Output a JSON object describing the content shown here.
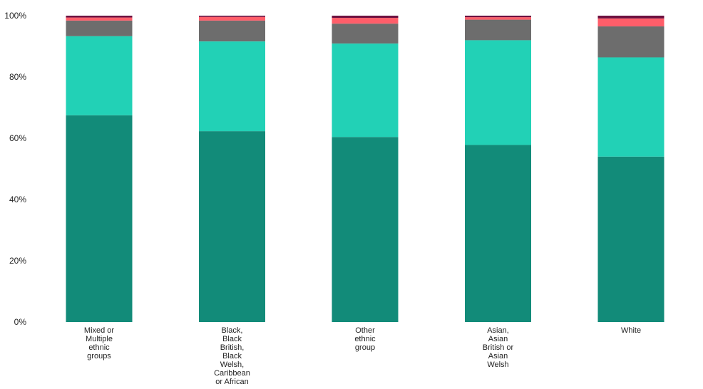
{
  "chart_data": {
    "type": "bar",
    "stacked": true,
    "categories": [
      [
        "Mixed or",
        "Multiple",
        "ethnic",
        "groups"
      ],
      [
        "Black,",
        "Black",
        "British,",
        "Black",
        "Welsh,",
        "Caribbean",
        "or African"
      ],
      [
        "Other",
        "ethnic",
        "group"
      ],
      [
        "Asian,",
        "Asian",
        "British or",
        "Asian",
        "Welsh"
      ],
      [
        "White"
      ]
    ],
    "series": [
      {
        "color": "#128b79",
        "values": [
          67.5,
          62.3,
          60.4,
          57.8,
          54.0
        ]
      },
      {
        "color": "#22d1b6",
        "values": [
          25.8,
          29.3,
          30.5,
          34.2,
          32.4
        ]
      },
      {
        "color": "#6d6d6d",
        "values": [
          5.1,
          6.8,
          6.5,
          6.7,
          10.1
        ]
      },
      {
        "color": "#ff5e6a",
        "values": [
          1.0,
          1.2,
          1.9,
          0.8,
          2.6
        ]
      },
      {
        "color": "#6d1140",
        "values": [
          0.6,
          0.4,
          0.7,
          0.5,
          0.9
        ]
      }
    ],
    "yticks": [
      "0%",
      "20%",
      "40%",
      "60%",
      "80%",
      "100%"
    ],
    "ylim": [
      0,
      100
    ],
    "grid": false,
    "xlabel": "",
    "ylabel": "",
    "title": ""
  }
}
